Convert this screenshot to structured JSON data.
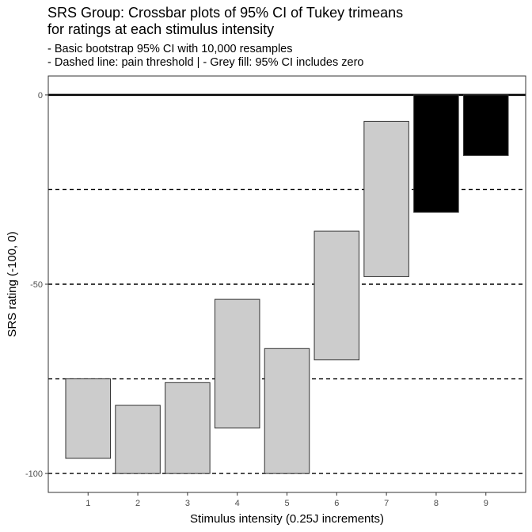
{
  "chart_data": {
    "type": "crossbar",
    "title_lines": [
      "SRS Group: Crossbar plots of 95% CI of Tukey trimeans",
      "for ratings at each stimulus intensity"
    ],
    "subtitle_lines": [
      "- Basic bootstrap 95% CI with 10,000 resamples",
      "- Dashed line: pain threshold | - Grey fill: 95% CI includes zero"
    ],
    "xlabel": "Stimulus intensity (0.25J increments)",
    "ylabel": "SRS rating (-100, 0)",
    "x_ticks": [
      "1",
      "2",
      "3",
      "4",
      "5",
      "6",
      "7",
      "8",
      "9"
    ],
    "y_ticks": [
      0,
      -50,
      -100
    ],
    "ylim": [
      -105,
      5
    ],
    "reference_lines": [
      {
        "y": 0,
        "style": "solid"
      },
      {
        "y": -25,
        "style": "dashed"
      },
      {
        "y": -50,
        "style": "dashed"
      },
      {
        "y": -75,
        "style": "dashed"
      },
      {
        "y": -100,
        "style": "dashed"
      }
    ],
    "bars": [
      {
        "x": "1",
        "lower": -96,
        "upper": -75,
        "fill": "#cccccc"
      },
      {
        "x": "2",
        "lower": -100,
        "upper": -82,
        "fill": "#cccccc"
      },
      {
        "x": "3",
        "lower": -100,
        "upper": -76,
        "fill": "#cccccc"
      },
      {
        "x": "4",
        "lower": -88,
        "upper": -54,
        "fill": "#cccccc"
      },
      {
        "x": "5",
        "lower": -100,
        "upper": -67,
        "fill": "#cccccc"
      },
      {
        "x": "6",
        "lower": -70,
        "upper": -36,
        "fill": "#cccccc"
      },
      {
        "x": "7",
        "lower": -48,
        "upper": -7,
        "fill": "#cccccc"
      },
      {
        "x": "8",
        "lower": -31,
        "upper": 0,
        "fill": "#000000"
      },
      {
        "x": "9",
        "lower": -16,
        "upper": 0,
        "fill": "#000000"
      }
    ],
    "grid": false,
    "legend": "none"
  }
}
